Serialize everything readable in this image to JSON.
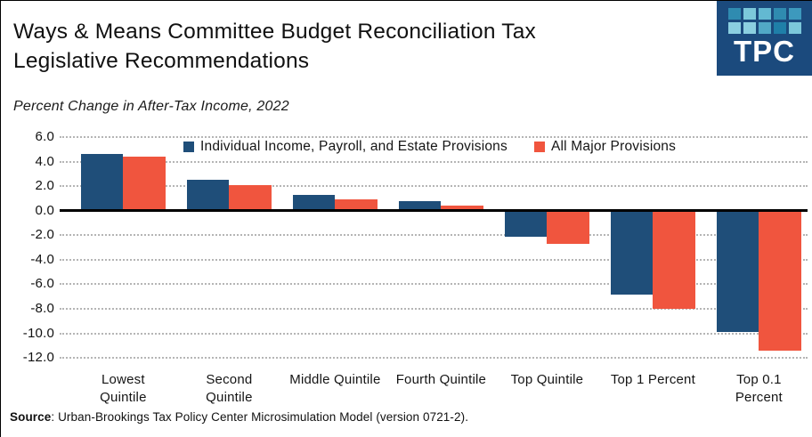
{
  "header": {
    "title_line1": "Ways & Means Committee Budget Reconciliation Tax",
    "title_line2": "Legislative Recommendations",
    "subtitle": "Percent Change in After-Tax Income, 2022"
  },
  "logo": {
    "text": "TPC",
    "bg_color": "#1b4a7d",
    "square_colors": [
      "#2f8bb0",
      "#7cc8da",
      "#63b9d2",
      "#2f8bb0",
      "#3d99bd",
      "#8bcfe0",
      "#8bcfe0",
      "#51a8c6",
      "#1f7fa8",
      "#7cc8da"
    ]
  },
  "chart_data": {
    "type": "bar",
    "title": "Ways & Means Committee Budget Reconciliation Tax Legislative Recommendations",
    "subtitle": "Percent Change in After-Tax Income, 2022",
    "categories": [
      "Lowest Quintile",
      "Second Quintile",
      "Middle Quintile",
      "Fourth Quintile",
      "Top Quintile",
      "Top 1 Percent",
      "Top 0.1 Percent"
    ],
    "series": [
      {
        "name": "Individual Income, Payroll, and Estate Provisions",
        "color": "#1f4e79",
        "values": [
          4.6,
          2.5,
          1.3,
          0.8,
          -2.0,
          -6.7,
          -9.8
        ]
      },
      {
        "name": "All Major Provisions",
        "color": "#f0553e",
        "values": [
          4.4,
          2.1,
          0.9,
          0.4,
          -2.6,
          -7.9,
          -11.3
        ]
      }
    ],
    "ylim": [
      -12,
      6
    ],
    "ytick_step": 2,
    "ytick_labels": [
      "6.0",
      "4.0",
      "2.0",
      "0.0",
      "-2.0",
      "-4.0",
      "-6.0",
      "-8.0",
      "-10.0",
      "-12.0"
    ],
    "xlabel": "",
    "ylabel": "",
    "grid": "horizontal dotted",
    "legend_position": "top-center"
  },
  "footer": {
    "source_label": "Source",
    "source_text": ": Urban-Brookings Tax Policy Center Microsimulation Model (version 0721-2)."
  }
}
